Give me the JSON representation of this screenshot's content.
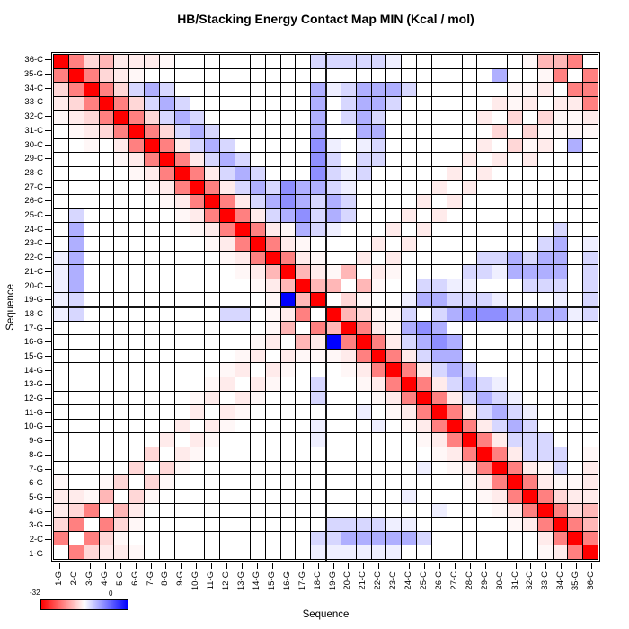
{
  "title": "HB/Stacking Energy Contact Map MIN (Kcal / mol)",
  "x_axis": {
    "label": "Sequence",
    "tick_labels": [
      "1-G",
      "2-C",
      "3-G",
      "4-G",
      "5-G",
      "6-G",
      "7-G",
      "8-G",
      "9-G",
      "10-G",
      "11-G",
      "12-G",
      "13-G",
      "14-G",
      "15-G",
      "16-G",
      "17-G",
      "18-C",
      "19-G",
      "20-C",
      "21-C",
      "22-C",
      "23-C",
      "24-C",
      "25-C",
      "26-C",
      "27-C",
      "28-C",
      "29-C",
      "30-C",
      "31-C",
      "32-C",
      "33-C",
      "34-C",
      "35-G",
      "36-C"
    ]
  },
  "y_axis": {
    "label": "Sequence",
    "tick_labels_top_to_bottom": [
      "36-C",
      "35-G",
      "34-C",
      "33-C",
      "32-C",
      "31-C",
      "30-C",
      "29-C",
      "28-C",
      "27-C",
      "26-C",
      "25-C",
      "24-C",
      "23-C",
      "22-C",
      "21-C",
      "20-C",
      "19-G",
      "18-C",
      "17-G",
      "16-G",
      "15-G",
      "14-G",
      "13-G",
      "12-G",
      "11-G",
      "10-G",
      "9-G",
      "8-G",
      "7-G",
      "6-G",
      "5-G",
      "4-G",
      "3-G",
      "2-C",
      "1-G"
    ]
  },
  "legend": {
    "left_label": "-32",
    "right_label": "0",
    "gradient_colors": [
      "#ff0000",
      "#ffffff",
      "#0000ff"
    ]
  },
  "chart_data": {
    "type": "heatmap",
    "title": "HB/Stacking Energy Contact Map MIN (Kcal / mol)",
    "xlabel": "Sequence",
    "ylabel": "Sequence",
    "sequence": [
      "1-G",
      "2-C",
      "3-G",
      "4-G",
      "5-G",
      "6-G",
      "7-G",
      "8-G",
      "9-G",
      "10-G",
      "11-G",
      "12-G",
      "13-G",
      "14-G",
      "15-G",
      "16-G",
      "17-G",
      "18-C",
      "19-G",
      "20-C",
      "21-C",
      "22-C",
      "23-C",
      "24-C",
      "25-C",
      "26-C",
      "27-C",
      "28-C",
      "29-C",
      "30-C",
      "31-C",
      "32-C",
      "33-C",
      "34-C",
      "35-G",
      "36-C"
    ],
    "value_scale_kcal_per_mol": {
      "R": -32,
      "S": -16,
      "r": -9,
      "p": -5,
      "q": -2.5,
      "f": -1,
      ".": 0,
      "b": 1,
      "c": 2.5,
      "l": 5,
      "m": 7,
      "B": 16
    },
    "color_scale": {
      "negative_max_color": "#ff0000",
      "zero_color": "#ffffff",
      "positive_max_color": "#0000ff",
      "negative_range": 32,
      "positive_range": 16
    },
    "rows_top_to_bottom_36C_to_1G": [
      "RSprqqqf.........cccccb........frrS.",
      "SRSpqf.......................l..fS.S",
      "pSRSpclc.........lbclllc......ffq.SS",
      "qpSRSpclc........l.cllc......qfq.qqS",
      "fqpSRSpclc.......l.clc......q.p.pffq",
      ".fqpSRSpclc......l..ll.......p.pffff",
      "..f.qSRSqclc.....mb.bc......q.pfq.l.",
      "....fqSRSqclc....mc.cc.....q.q.q....",
      ".....fqSRSqclc...mcbc.....q.q.......",
      "......fqSRSqclcmllcb.....q.q........",
      ".......fqSRSqclmlclc....q.q.........",
      ".c......fqSRSqclmclc...q.q..........",
      ".l.......fqSRSqflcb...q.q........c..",
      ".l........fqSRSqf....q.q........cl.b",
      "bl.........fqSRSqf..q.q.....cclcll.c",
      "bl..........fqrRrqfr.qf....ccbllll.c",
      "bl...........fqrRrr.rf..ccbb...ccc.c",
      "bc............fBrR.pf..bllcccb...b.c",
      "bc.........cc.fqS.Rrpffc.clmmmllllbc",
      "..............fr.SrRSqflml..........",
      ".............fq.rqBSRSqclml.........",
      "............fq.qfffqSRSqcll.........",
      "...........fq.qf...fqSRSqclc........",
      "..........fq.qf..c..fqSRSqclcb......",
      ".........fq.qf...c...fqSRSqclcb.....",
      ".........q.qf.......b.fqSRSqclcb....",
      "........q.qf.....b...b.fqSRSqclc....",
      ".......q.qf......b......fqSRSqccc...",
      "......p.qf...............fqSRSqccc.f",
      ".....p.pf...............b.fqSRSqfc.q",
      "f..fp.pf...................fqSRSqffq",
      "qqfr.pf................b....fqSRSpqq",
      "qpS.rq...................b...fqSRSpr",
      "pS.Spf............ccccbb......fqSRSr",
      "S.Spf............cclllllc.......qSRS",
      ".Spqqf...........bbbbbb.........fqSR"
    ],
    "center_lines": "dark divider lines between positions 18-C and 19-G on both axes",
    "strongest_negative_diagonal": "anti-diagonal (i paired with 37-i) in deep red",
    "strong_positive_cells": [
      "row 19-G / col 16-G",
      "row 16-G / col 19-G"
    ]
  }
}
